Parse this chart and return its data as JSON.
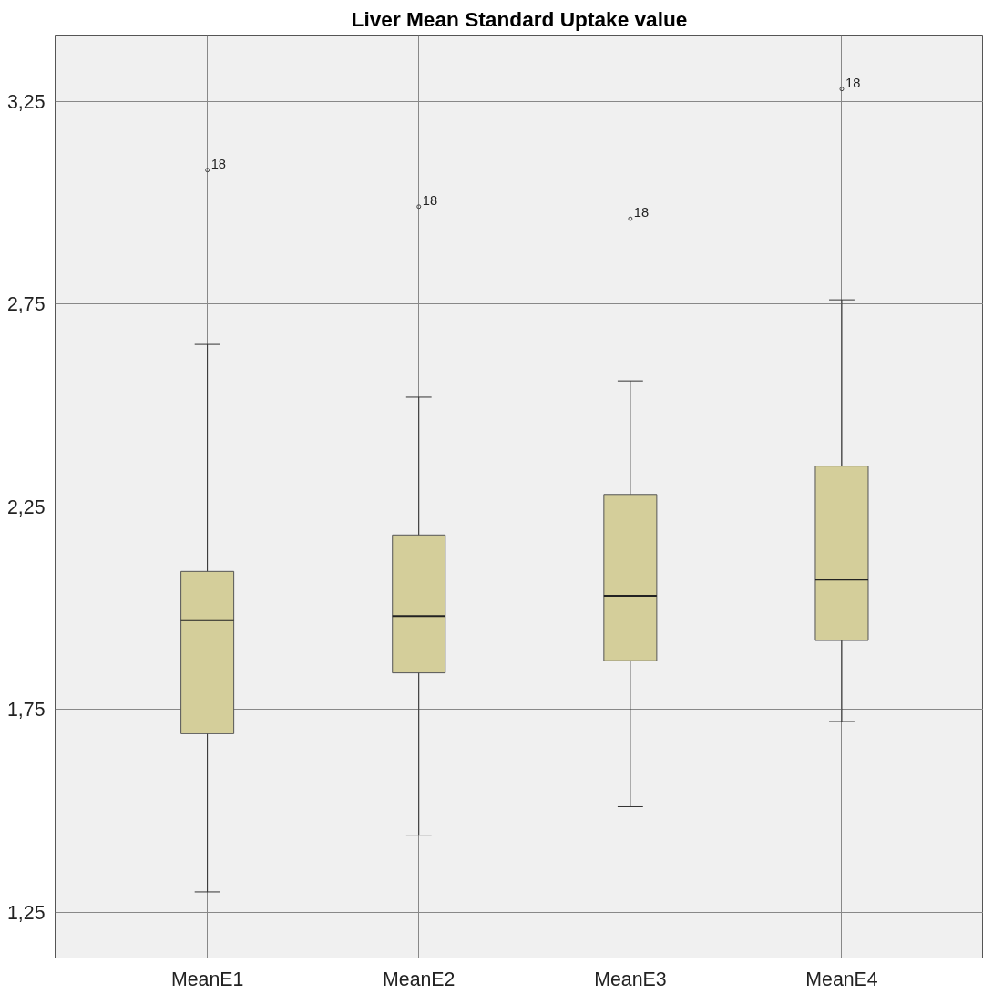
{
  "chart_data": {
    "type": "box",
    "title": "Liver Mean Standard Uptake value",
    "categories": [
      "MeanE1",
      "MeanE2",
      "MeanE3",
      "MeanE4"
    ],
    "boxes": [
      {
        "low": 1.3,
        "q1": 1.69,
        "median": 1.97,
        "q3": 2.09,
        "high": 2.65,
        "outliers": [
          3.08
        ]
      },
      {
        "low": 1.44,
        "q1": 1.84,
        "median": 1.98,
        "q3": 2.18,
        "high": 2.52,
        "outliers": [
          2.99
        ]
      },
      {
        "low": 1.51,
        "q1": 1.87,
        "median": 2.03,
        "q3": 2.28,
        "high": 2.56,
        "outliers": [
          2.96
        ]
      },
      {
        "low": 1.72,
        "q1": 1.92,
        "median": 2.07,
        "q3": 2.35,
        "high": 2.76,
        "outliers": [
          3.28
        ]
      }
    ],
    "color": "#d4ce9a",
    "ylim": [
      1.137,
      3.413
    ],
    "yticks": [
      {
        "value": 1.25,
        "label": "1,25"
      },
      {
        "value": 1.75,
        "label": "1,75"
      },
      {
        "value": 2.25,
        "label": "2,25"
      },
      {
        "value": 2.75,
        "label": "2,75"
      },
      {
        "value": 3.25,
        "label": "3,25"
      }
    ],
    "grid": true,
    "annotations": [
      "18",
      "18",
      "18",
      "18"
    ]
  }
}
